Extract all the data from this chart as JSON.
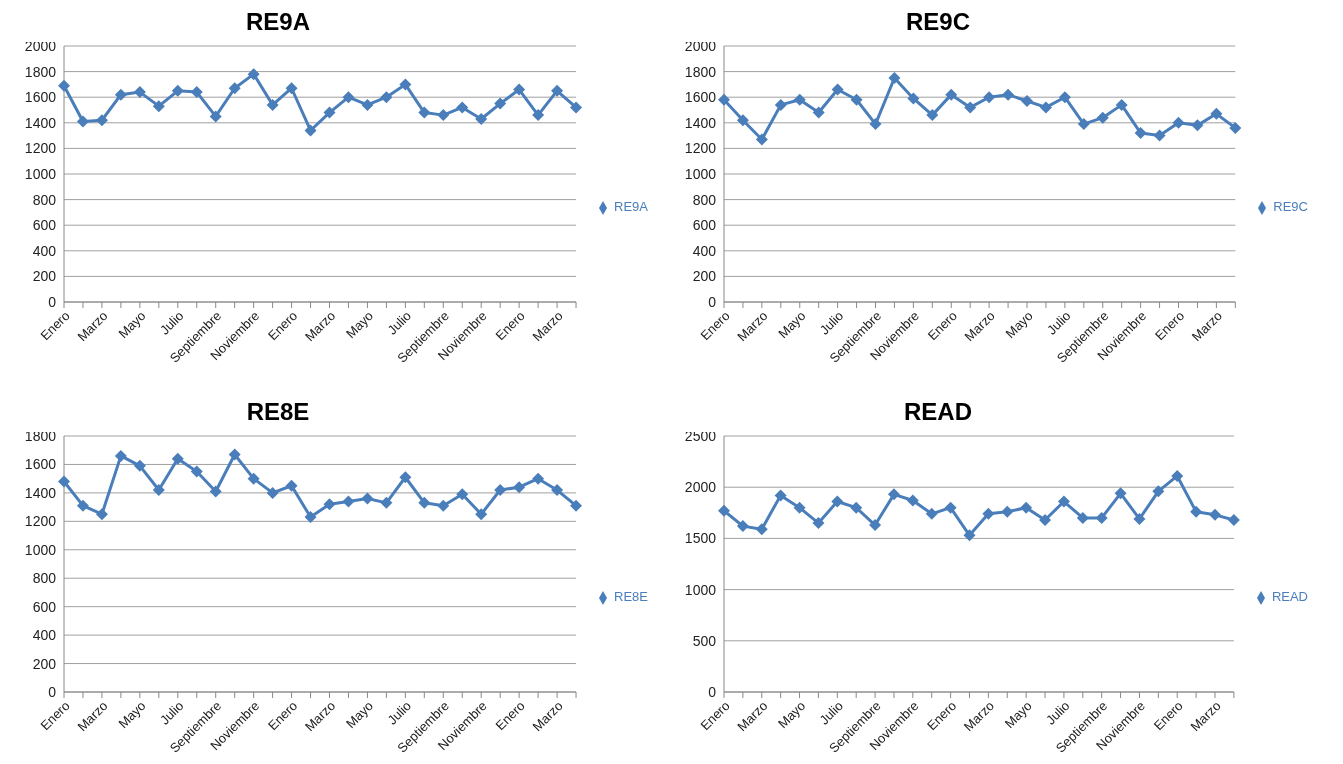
{
  "chart_data": [
    {
      "type": "line",
      "title": "RE9A",
      "categories": [
        "Enero",
        null,
        "Marzo",
        null,
        "Mayo",
        null,
        "Julio",
        null,
        "Septiembre",
        null,
        "Noviembre",
        null,
        "Enero",
        null,
        "Marzo",
        null,
        "Mayo",
        null,
        "Julio",
        null,
        "Septiembre",
        null,
        "Noviembre",
        null,
        "Enero",
        null,
        "Marzo",
        null
      ],
      "series": [
        {
          "name": "RE9A",
          "color": "#4a7ebb",
          "values": [
            1690,
            1410,
            1420,
            1620,
            1640,
            1530,
            1650,
            1640,
            1450,
            1670,
            1780,
            1540,
            1670,
            1340,
            1480,
            1600,
            1540,
            1600,
            1700,
            1480,
            1460,
            1520,
            1430,
            1550,
            1660,
            1460,
            1650,
            1520
          ]
        }
      ],
      "ylim": [
        0,
        2000
      ],
      "yticks": [
        0,
        200,
        400,
        600,
        800,
        1000,
        1200,
        1400,
        1600,
        1800,
        2000
      ],
      "grid": "y",
      "legend": "right",
      "marker": "diamond",
      "line_style": "solid"
    },
    {
      "type": "line",
      "title": "RE9C",
      "categories": [
        "Enero",
        null,
        "Marzo",
        null,
        "Mayo",
        null,
        "Julio",
        null,
        "Septiembre",
        null,
        "Noviembre",
        null,
        "Enero",
        null,
        "Marzo",
        null,
        "Mayo",
        null,
        "Julio",
        null,
        "Septiembre",
        null,
        "Noviembre",
        null,
        "Enero",
        null,
        "Marzo",
        null
      ],
      "series": [
        {
          "name": "RE9C",
          "color": "#4a7ebb",
          "values": [
            1580,
            1420,
            1270,
            1540,
            1580,
            1480,
            1660,
            1580,
            1390,
            1750,
            1590,
            1460,
            1620,
            1520,
            1600,
            1620,
            1570,
            1520,
            1600,
            1390,
            1440,
            1540,
            1320,
            1300,
            1400,
            1380,
            1470,
            1360
          ]
        }
      ],
      "ylim": [
        0,
        2000
      ],
      "yticks": [
        0,
        200,
        400,
        600,
        800,
        1000,
        1200,
        1400,
        1600,
        1800,
        2000
      ],
      "grid": "y",
      "legend": "right",
      "marker": "diamond",
      "line_style": "solid"
    },
    {
      "type": "line",
      "title": "RE8E",
      "categories": [
        "Enero",
        null,
        "Marzo",
        null,
        "Mayo",
        null,
        "Julio",
        null,
        "Septiembre",
        null,
        "Noviembre",
        null,
        "Enero",
        null,
        "Marzo",
        null,
        "Mayo",
        null,
        "Julio",
        null,
        "Septiembre",
        null,
        "Noviembre",
        null,
        "Enero",
        null,
        "Marzo",
        null
      ],
      "series": [
        {
          "name": "RE8E",
          "color": "#4a7ebb",
          "values": [
            1480,
            1310,
            1250,
            1660,
            1590,
            1420,
            1640,
            1550,
            1410,
            1670,
            1500,
            1400,
            1450,
            1230,
            1320,
            1340,
            1360,
            1330,
            1510,
            1330,
            1310,
            1390,
            1250,
            1420,
            1440,
            1500,
            1420,
            1310
          ]
        }
      ],
      "ylim": [
        0,
        1800
      ],
      "yticks": [
        0,
        200,
        400,
        600,
        800,
        1000,
        1200,
        1400,
        1600,
        1800
      ],
      "grid": "y",
      "legend": "right",
      "marker": "diamond",
      "line_style": "solid"
    },
    {
      "type": "line",
      "title": "READ",
      "categories": [
        "Enero",
        null,
        "Marzo",
        null,
        "Mayo",
        null,
        "Julio",
        null,
        "Septiembre",
        null,
        "Noviembre",
        null,
        "Enero",
        null,
        "Marzo",
        null,
        "Mayo",
        null,
        "Julio",
        null,
        "Septiembre",
        null,
        "Noviembre",
        null,
        "Enero",
        null,
        "Marzo",
        null
      ],
      "series": [
        {
          "name": "READ",
          "color": "#4a7ebb",
          "values": [
            1770,
            1620,
            1590,
            1920,
            1800,
            1650,
            1860,
            1800,
            1630,
            1930,
            1870,
            1740,
            1800,
            1530,
            1740,
            1760,
            1800,
            1680,
            1860,
            1700,
            1700,
            1940,
            1690,
            1960,
            2110,
            1760,
            1730,
            1680
          ]
        }
      ],
      "ylim": [
        0,
        2500
      ],
      "yticks": [
        0,
        500,
        1000,
        1500,
        2000,
        2500
      ],
      "grid": "y",
      "legend": "right",
      "marker": "diamond",
      "line_style": "solid"
    }
  ]
}
